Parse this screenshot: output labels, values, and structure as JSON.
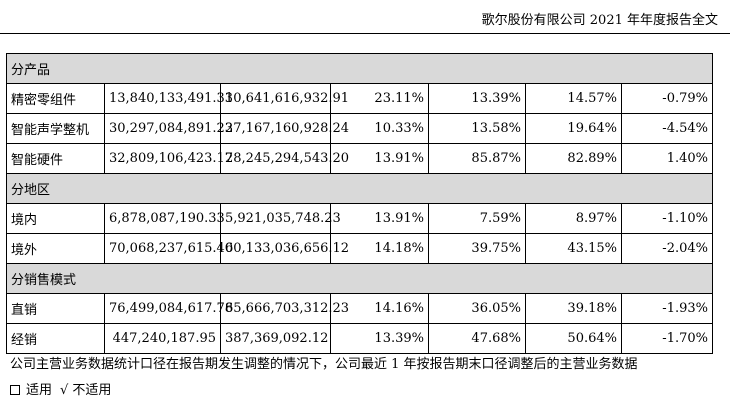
{
  "header": {
    "title": "歌尔股份有限公司 2021 年年度报告全文"
  },
  "table": {
    "sections": [
      {
        "title": "分产品",
        "rows": [
          {
            "name": "精密零组件",
            "revenue": "13,840,133,491.33",
            "cost": "10,641,616,932.91",
            "margin": "23.11%",
            "revenue_change": "13.39%",
            "cost_change": "14.57%",
            "margin_change": "-0.79%"
          },
          {
            "name": "智能声学整机",
            "revenue": "30,297,084,891.23",
            "cost": "27,167,160,928.24",
            "margin": "10.33%",
            "revenue_change": "13.58%",
            "cost_change": "19.64%",
            "margin_change": "-4.54%"
          },
          {
            "name": "智能硬件",
            "revenue": "32,809,106,423.17",
            "cost": "28,245,294,543.20",
            "margin": "13.91%",
            "revenue_change": "85.87%",
            "cost_change": "82.89%",
            "margin_change": "1.40%"
          }
        ]
      },
      {
        "title": "分地区",
        "rows": [
          {
            "name": "境内",
            "revenue": "6,878,087,190.33",
            "cost": "5,921,035,748.23",
            "margin": "13.91%",
            "revenue_change": "7.59%",
            "cost_change": "8.97%",
            "margin_change": "-1.10%"
          },
          {
            "name": "境外",
            "revenue": "70,068,237,615.40",
            "cost": "60,133,036,656.12",
            "margin": "14.18%",
            "revenue_change": "39.75%",
            "cost_change": "43.15%",
            "margin_change": "-2.04%"
          }
        ]
      },
      {
        "title": "分销售模式",
        "rows": [
          {
            "name": "直销",
            "revenue": "76,499,084,617.78",
            "cost": "65,666,703,312.23",
            "margin": "14.16%",
            "revenue_change": "36.05%",
            "cost_change": "39.18%",
            "margin_change": "-1.93%"
          },
          {
            "name": "经销",
            "revenue": "447,240,187.95",
            "cost": "387,369,092.12",
            "margin": "13.39%",
            "revenue_change": "47.68%",
            "cost_change": "50.64%",
            "margin_change": "-1.70%"
          }
        ]
      }
    ]
  },
  "note": "公司主营业务数据统计口径在报告期发生调整的情况下，公司最近 1 年按报告期末口径调整后的主营业务数据",
  "applicability": {
    "option_yes": "适用",
    "check_mark": "√",
    "option_no": "不适用"
  }
}
